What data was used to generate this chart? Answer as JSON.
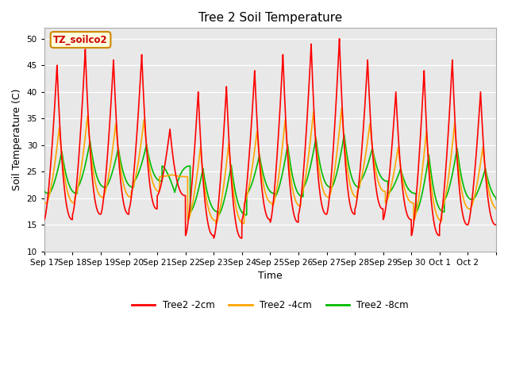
{
  "title": "Tree 2 Soil Temperature",
  "ylabel": "Soil Temperature (C)",
  "xlabel": "Time",
  "annotation": "TZ_soilco2",
  "ylim": [
    10,
    52
  ],
  "yticks": [
    10,
    15,
    20,
    25,
    30,
    35,
    40,
    45,
    50
  ],
  "background_color": "#e8e8e8",
  "fig_background": "#ffffff",
  "line_colors": {
    "2cm": "#ff0000",
    "4cm": "#ffa500",
    "8cm": "#00bb00"
  },
  "legend_labels": [
    "Tree2 -2cm",
    "Tree2 -4cm",
    "Tree2 -8cm"
  ],
  "x_tick_labels": [
    "Sep 17",
    "Sep 18",
    "Sep 19",
    "Sep 20",
    "Sep 21",
    "Sep 22",
    "Sep 23",
    "Sep 24",
    "Sep 25",
    "Sep 26",
    "Sep 27",
    "Sep 28",
    "Sep 29",
    "Sep 30",
    "Oct 1",
    "Oct 2"
  ],
  "day_peaks_2cm": [
    45,
    48,
    46,
    47,
    33,
    40,
    41,
    44,
    47,
    49,
    50,
    46,
    40,
    44,
    46,
    40
  ],
  "day_mins_2cm": [
    16,
    17,
    17,
    18,
    20.5,
    13,
    12.5,
    16,
    15.5,
    17,
    17,
    18,
    16,
    13,
    15,
    15
  ],
  "peak_time": 0.45,
  "pts_per_day": 200,
  "n_days": 16
}
